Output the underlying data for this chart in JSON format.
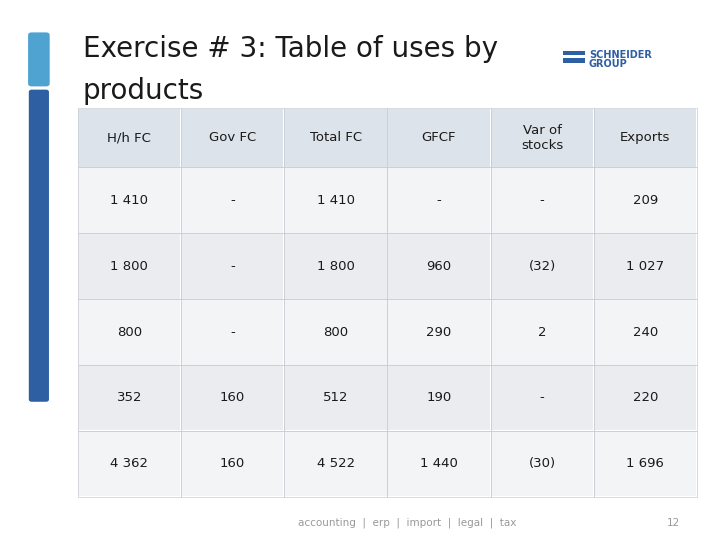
{
  "title_line1": "Exercise # 3: Table of uses by",
  "title_line2": "products",
  "title_fontsize": 20,
  "title_color": "#1a1a1a",
  "accent_bar_color": "#2e5fa3",
  "accent_top_color": "#4fa3d1",
  "bg_color": "#ffffff",
  "table_bg_header": "#dde3ea",
  "table_bg_even": "#eaecf0",
  "table_bg_odd": "#f2f4f6",
  "table_border_color": "#c8cdd4",
  "headers": [
    "H/h FC",
    "Gov FC",
    "Total FC",
    "GFCF",
    "Var of\nstocks",
    "Exports"
  ],
  "rows": [
    [
      "1 410",
      "-",
      "1 410",
      "-",
      "-",
      "209"
    ],
    [
      "1 800",
      "-",
      "1 800",
      "960",
      "(32)",
      "1 027"
    ],
    [
      "800",
      "-",
      "800",
      "290",
      "2",
      "240"
    ],
    [
      "352",
      "160",
      "512",
      "190",
      "-",
      "220"
    ],
    [
      "4 362",
      "160",
      "4 522",
      "1 440",
      "(30)",
      "1 696"
    ]
  ],
  "footer_text": "accounting  |  erp  |  import  |  legal  |  tax",
  "footer_page": "12",
  "footer_color": "#999999",
  "footer_fontsize": 7.5,
  "table_header_fontsize": 9.5,
  "table_cell_fontsize": 9.5,
  "schneider_color": "#2e5fa3",
  "schneider_text1": "SCHNEIDER",
  "schneider_text2": "GROUP"
}
